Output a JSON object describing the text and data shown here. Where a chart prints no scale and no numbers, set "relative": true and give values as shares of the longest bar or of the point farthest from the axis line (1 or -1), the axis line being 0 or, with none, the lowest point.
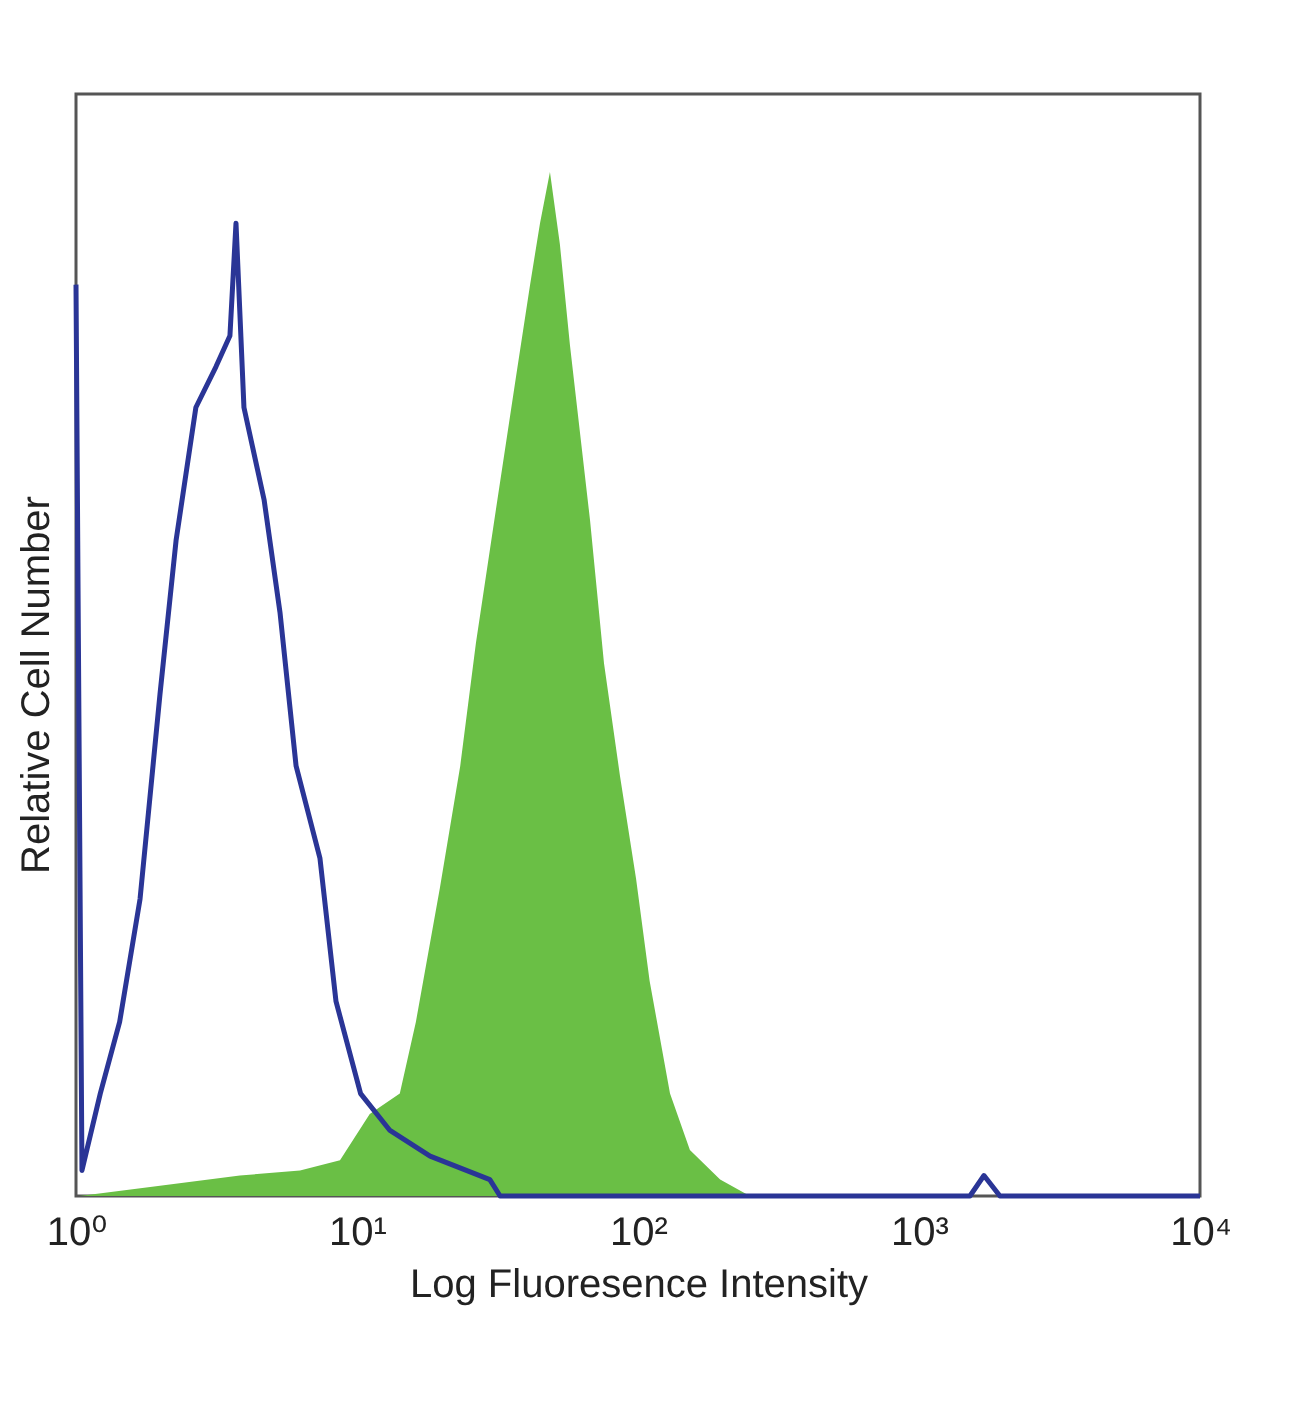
{
  "chart_data": {
    "type": "line",
    "relative": true,
    "log": "x",
    "grid": false,
    "legend": false,
    "xlabel": "Log Fluoresence Intensity",
    "ylabel": "Relative Cell Number",
    "xlim": [
      1,
      10000
    ],
    "xticks": [
      {
        "value": 1,
        "label": "10⁰"
      },
      {
        "value": 10,
        "label": "10¹"
      },
      {
        "value": 100,
        "label": "10²"
      },
      {
        "value": 1000,
        "label": "10³"
      },
      {
        "value": 10000,
        "label": "10⁴"
      }
    ],
    "series": [
      {
        "type": "area",
        "color": "#6abf45",
        "x": [
          1.03,
          1.99,
          3.83,
          6.27,
          8.7,
          11.1,
          14.2,
          16.2,
          19.7,
          23.3,
          26.5,
          31.2,
          36.8,
          41.3,
          44.8,
          48.6,
          52.7,
          57.3,
          67.5,
          75.7,
          86.3,
          98.4,
          110,
          130,
          153,
          196,
          250,
          10000
        ],
        "values": [
          0,
          0.01,
          0.02,
          0.025,
          0.035,
          0.08,
          0.1,
          0.17,
          0.3,
          0.42,
          0.54,
          0.67,
          0.8,
          0.89,
          0.95,
          1,
          0.93,
          0.83,
          0.66,
          0.52,
          0.41,
          0.31,
          0.21,
          0.1,
          0.045,
          0.016,
          0,
          0
        ]
      },
      {
        "color": "#2a3596",
        "x": [
          1,
          1.05,
          1.22,
          1.43,
          1.69,
          1.99,
          2.27,
          2.67,
          3.15,
          3.53,
          3.71,
          3.96,
          4.67,
          5.32,
          6.07,
          7.38,
          8.42,
          10.3,
          13.1,
          18.2,
          29.7,
          32.3,
          1518,
          1703,
          1941,
          10000
        ],
        "values": [
          0.89,
          0.025,
          0.1,
          0.17,
          0.29,
          0.49,
          0.64,
          0.77,
          0.81,
          0.84,
          0.95,
          0.77,
          0.68,
          0.57,
          0.42,
          0.33,
          0.19,
          0.1,
          0.064,
          0.039,
          0.016,
          0,
          0,
          0.02,
          0,
          0
        ]
      }
    ]
  }
}
